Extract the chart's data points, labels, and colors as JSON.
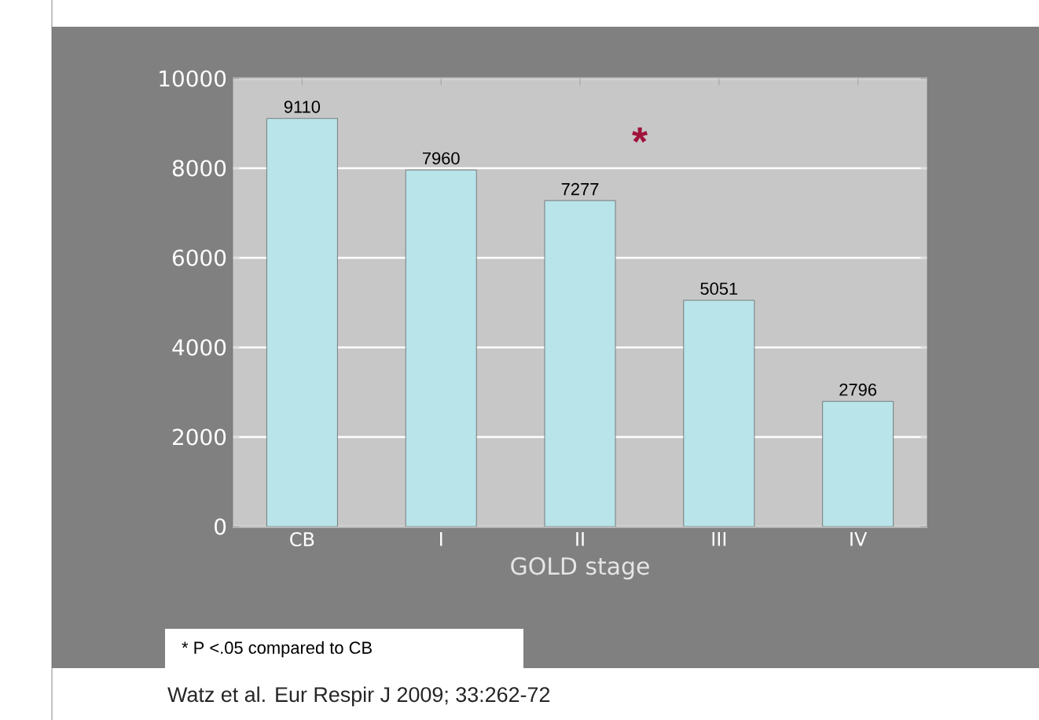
{
  "chart_data": {
    "type": "bar",
    "xlabel": "GOLD stage",
    "categories": [
      "CB",
      "I",
      "II",
      "III",
      "IV"
    ],
    "values": [
      9110,
      7960,
      7277,
      5051,
      2796
    ],
    "color": "#b8e4ea",
    "ylim": [
      0,
      10000
    ],
    "yticks": [
      0,
      2000,
      4000,
      6000,
      8000,
      10000
    ],
    "grid": "y",
    "data_labels": true,
    "annotations": [
      "*",
      "* P <.05 compared to CB",
      "Watz et al.  Eur Respir J 2009; 33:262-72"
    ]
  }
}
